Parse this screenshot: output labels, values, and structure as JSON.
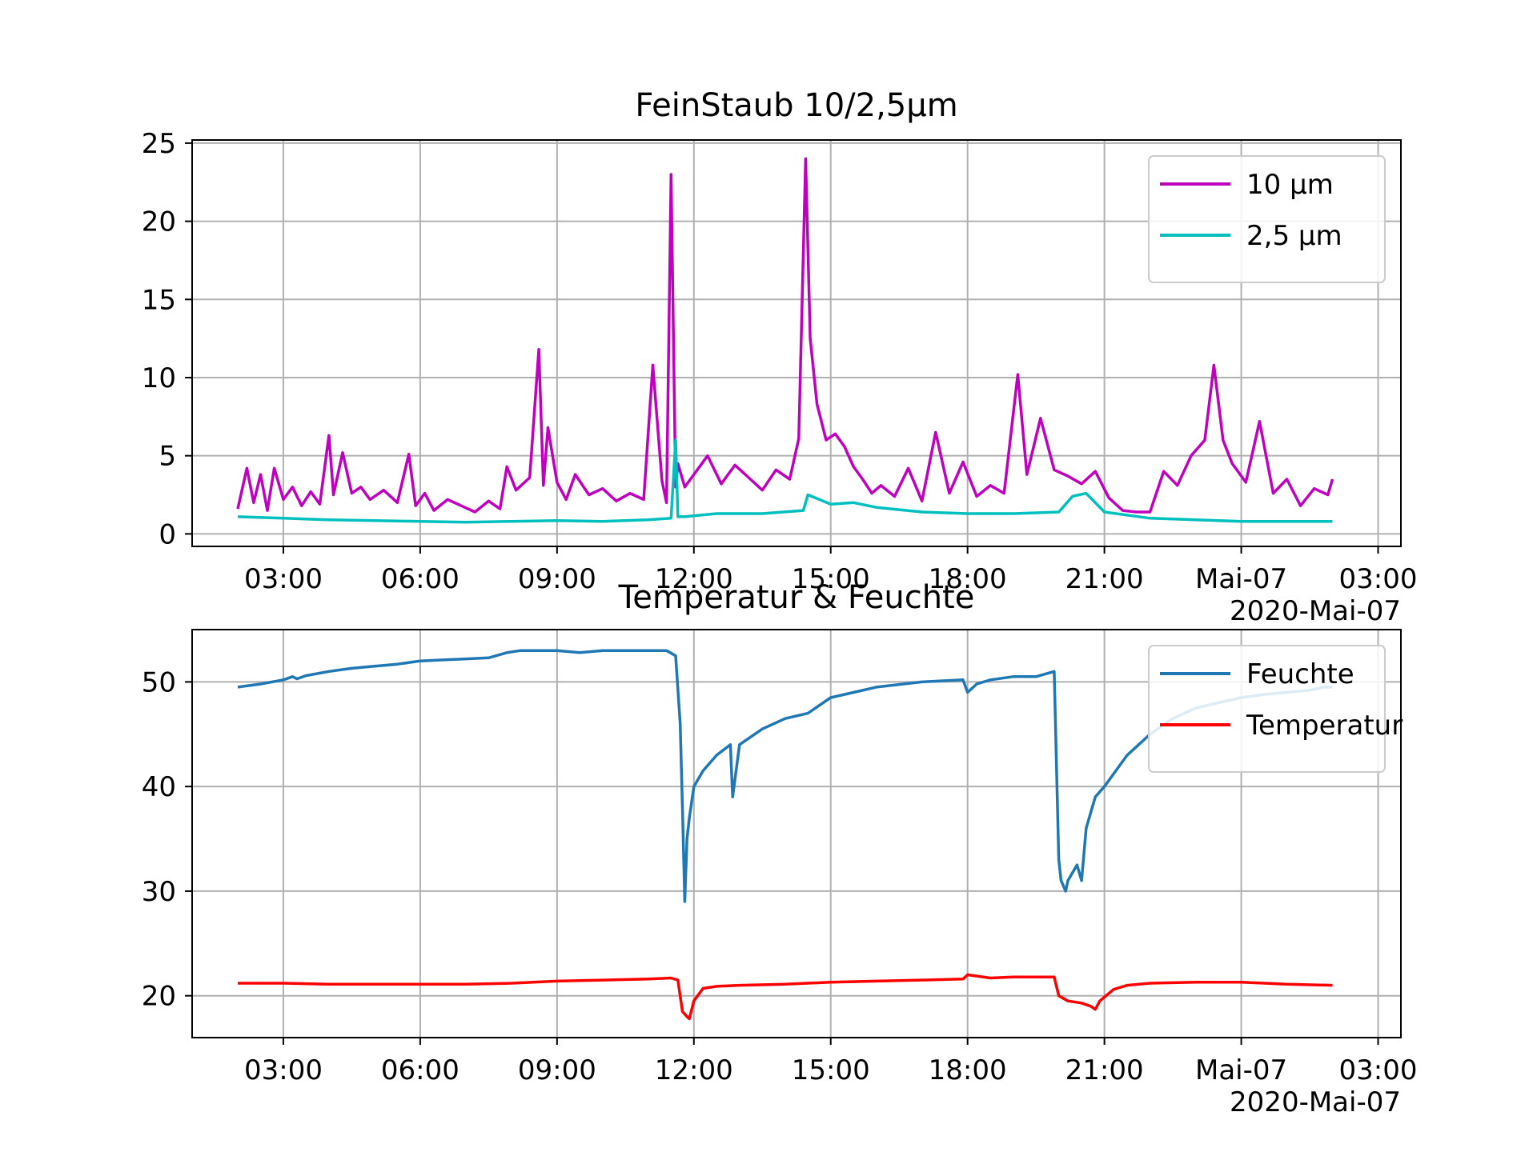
{
  "chart_data": [
    {
      "type": "line",
      "title": "FeinStaub 10/2,5µm",
      "xlabel": "",
      "ylabel": "",
      "xlim": [
        1.0,
        27.5
      ],
      "ylim": [
        -0.8,
        25.2
      ],
      "x_ticks": [
        3,
        6,
        9,
        12,
        15,
        18,
        21,
        24,
        27
      ],
      "x_tick_labels": [
        "03:00",
        "06:00",
        "09:00",
        "12:00",
        "15:00",
        "18:00",
        "21:00",
        "Mai-07",
        "03:00"
      ],
      "x_offset_label": "2020-Mai-07",
      "y_ticks": [
        0,
        5,
        10,
        15,
        20,
        25
      ],
      "y_tick_labels": [
        "0",
        "5",
        "10",
        "15",
        "20",
        "25"
      ],
      "grid": true,
      "legend_position": "top-right",
      "series": [
        {
          "name": "10 µm",
          "color": "#bf00bf",
          "x": [
            2.0,
            2.2,
            2.35,
            2.5,
            2.65,
            2.8,
            3.0,
            3.2,
            3.4,
            3.6,
            3.8,
            4.0,
            4.1,
            4.3,
            4.5,
            4.7,
            4.9,
            5.2,
            5.5,
            5.75,
            5.9,
            6.1,
            6.3,
            6.6,
            6.9,
            7.2,
            7.5,
            7.75,
            7.9,
            8.1,
            8.4,
            8.6,
            8.7,
            8.8,
            9.0,
            9.2,
            9.4,
            9.7,
            10.0,
            10.3,
            10.6,
            10.9,
            11.1,
            11.3,
            11.4,
            11.5,
            11.6,
            11.65,
            11.8,
            12.0,
            12.3,
            12.6,
            12.9,
            13.2,
            13.5,
            13.8,
            14.1,
            14.3,
            14.45,
            14.55,
            14.7,
            14.9,
            15.1,
            15.3,
            15.5,
            15.7,
            15.9,
            16.1,
            16.4,
            16.7,
            17.0,
            17.3,
            17.6,
            17.9,
            18.2,
            18.5,
            18.8,
            19.1,
            19.3,
            19.6,
            19.9,
            20.2,
            20.5,
            20.8,
            21.1,
            21.4,
            21.7,
            22.0,
            22.3,
            22.6,
            22.9,
            23.2,
            23.4,
            23.6,
            23.8,
            24.1,
            24.4,
            24.7,
            25.0,
            25.3,
            25.6,
            25.9,
            26.0
          ],
          "y": [
            1.6,
            4.2,
            2.0,
            3.8,
            1.5,
            4.2,
            2.2,
            3.0,
            1.8,
            2.7,
            1.9,
            6.3,
            2.5,
            5.2,
            2.6,
            3.0,
            2.2,
            2.8,
            2.0,
            5.1,
            1.8,
            2.6,
            1.5,
            2.2,
            1.8,
            1.4,
            2.1,
            1.6,
            4.3,
            2.8,
            3.6,
            11.8,
            3.1,
            6.8,
            3.3,
            2.2,
            3.8,
            2.5,
            2.9,
            2.1,
            2.6,
            2.2,
            10.8,
            3.4,
            2.0,
            23.0,
            3.0,
            4.5,
            3.0,
            3.8,
            5.0,
            3.2,
            4.4,
            3.6,
            2.8,
            4.1,
            3.5,
            6.1,
            24.0,
            12.5,
            8.3,
            6.0,
            6.4,
            5.6,
            4.3,
            3.5,
            2.6,
            3.1,
            2.4,
            4.2,
            2.1,
            6.5,
            2.6,
            4.6,
            2.4,
            3.1,
            2.6,
            10.2,
            3.8,
            7.4,
            4.1,
            3.7,
            3.2,
            4.0,
            2.3,
            1.5,
            1.4,
            1.4,
            4.0,
            3.1,
            5.0,
            6.0,
            10.8,
            6.0,
            4.5,
            3.3,
            7.2,
            2.6,
            3.5,
            1.8,
            2.9,
            2.5,
            3.5
          ]
        },
        {
          "name": "2,5 µm",
          "color": "#00bfbf",
          "x": [
            2.0,
            3.0,
            4.0,
            5.0,
            6.0,
            7.0,
            8.0,
            9.0,
            10.0,
            11.0,
            11.5,
            11.6,
            11.65,
            11.8,
            12.5,
            13.5,
            14.4,
            14.5,
            15.0,
            15.5,
            16.0,
            17.0,
            18.0,
            19.0,
            20.0,
            20.3,
            20.6,
            21.0,
            22.0,
            23.0,
            24.0,
            25.0,
            26.0
          ],
          "y": [
            1.1,
            1.0,
            0.9,
            0.85,
            0.8,
            0.75,
            0.8,
            0.85,
            0.8,
            0.9,
            1.0,
            6.0,
            1.1,
            1.1,
            1.3,
            1.3,
            1.5,
            2.5,
            1.9,
            2.0,
            1.7,
            1.4,
            1.3,
            1.3,
            1.4,
            2.4,
            2.6,
            1.4,
            1.0,
            0.9,
            0.8,
            0.8,
            0.8
          ]
        }
      ]
    },
    {
      "type": "line",
      "title": "Temperatur & Feuchte",
      "xlabel": "",
      "ylabel": "",
      "xlim": [
        1.0,
        27.5
      ],
      "ylim": [
        16,
        55
      ],
      "x_ticks": [
        3,
        6,
        9,
        12,
        15,
        18,
        21,
        24,
        27
      ],
      "x_tick_labels": [
        "03:00",
        "06:00",
        "09:00",
        "12:00",
        "15:00",
        "18:00",
        "21:00",
        "Mai-07",
        "03:00"
      ],
      "x_offset_label": "2020-Mai-07",
      "y_ticks": [
        20,
        30,
        40,
        50
      ],
      "y_tick_labels": [
        "20",
        "30",
        "40",
        "50"
      ],
      "grid": true,
      "legend_position": "top-right",
      "series": [
        {
          "name": "Feuchte",
          "color": "#1f77b4",
          "x": [
            2.0,
            2.5,
            3.0,
            3.2,
            3.3,
            3.5,
            4.0,
            4.5,
            5.0,
            5.5,
            6.0,
            6.5,
            7.0,
            7.5,
            7.9,
            8.2,
            9.0,
            9.5,
            10.0,
            10.5,
            11.0,
            11.4,
            11.6,
            11.7,
            11.75,
            11.8,
            11.85,
            11.9,
            12.0,
            12.2,
            12.5,
            12.8,
            12.85,
            13.0,
            13.5,
            14.0,
            14.5,
            15.0,
            15.5,
            16.0,
            17.0,
            17.9,
            18.0,
            18.2,
            18.5,
            19.0,
            19.5,
            19.9,
            20.0,
            20.05,
            20.15,
            20.2,
            20.4,
            20.5,
            20.6,
            20.8,
            21.0,
            21.5,
            22.0,
            22.5,
            23.0,
            23.5,
            24.0,
            24.5,
            25.0,
            25.5,
            25.8,
            26.0
          ],
          "y": [
            49.5,
            49.8,
            50.2,
            50.5,
            50.3,
            50.6,
            51.0,
            51.3,
            51.5,
            51.7,
            52.0,
            52.1,
            52.2,
            52.3,
            52.8,
            53.0,
            53.0,
            52.8,
            53.0,
            53.0,
            53.0,
            53.0,
            52.5,
            46.0,
            38.0,
            29.0,
            35.0,
            37.0,
            40.0,
            41.5,
            43.0,
            44.0,
            39.0,
            44.0,
            45.5,
            46.5,
            47.0,
            48.5,
            49.0,
            49.5,
            50.0,
            50.2,
            49.0,
            49.8,
            50.2,
            50.5,
            50.5,
            51.0,
            33.0,
            31.0,
            30.0,
            31.0,
            32.5,
            31.0,
            36.0,
            39.0,
            40.0,
            43.0,
            45.0,
            46.5,
            47.5,
            48.0,
            48.5,
            48.8,
            49.0,
            49.2,
            49.5,
            49.5
          ]
        },
        {
          "name": "Temperatur",
          "color": "#ff0000",
          "x": [
            2.0,
            3.0,
            4.0,
            5.0,
            6.0,
            7.0,
            8.0,
            9.0,
            10.0,
            11.0,
            11.5,
            11.65,
            11.75,
            11.85,
            11.9,
            12.0,
            12.2,
            12.5,
            13.0,
            14.0,
            15.0,
            16.0,
            17.0,
            17.9,
            18.0,
            18.5,
            19.0,
            19.5,
            19.9,
            20.0,
            20.2,
            20.5,
            20.7,
            20.8,
            20.9,
            21.2,
            21.5,
            22.0,
            23.0,
            24.0,
            25.0,
            26.0
          ],
          "y": [
            21.2,
            21.2,
            21.1,
            21.1,
            21.1,
            21.1,
            21.2,
            21.4,
            21.5,
            21.6,
            21.7,
            21.5,
            18.5,
            18.0,
            17.8,
            19.5,
            20.7,
            20.9,
            21.0,
            21.1,
            21.3,
            21.4,
            21.5,
            21.6,
            22.0,
            21.7,
            21.8,
            21.8,
            21.8,
            20.0,
            19.5,
            19.3,
            19.0,
            18.7,
            19.5,
            20.6,
            21.0,
            21.2,
            21.3,
            21.3,
            21.1,
            21.0
          ]
        }
      ]
    }
  ]
}
